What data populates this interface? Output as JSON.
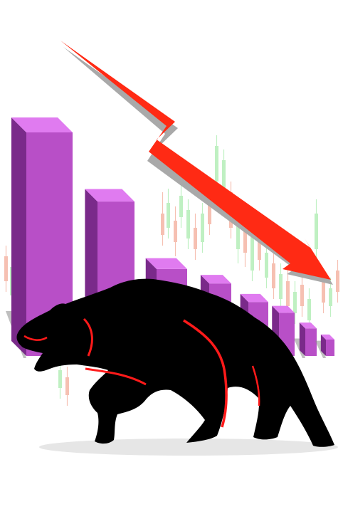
{
  "scene": {
    "background_color": "#ffffff",
    "bar_front_color": "#b84fc7",
    "bar_side_color": "#7a2a8a",
    "bar_top_color": "#e07bf0",
    "arrow_color": "#ff2a14",
    "arrow_shadow_color": "#a9a9a9",
    "bear_color": "#000000",
    "bear_accent_color": "#ff1a1a",
    "ground_shadow_color": "#e6e6e6",
    "candle_up_color": "#bff0c2",
    "candle_down_color": "#f6c0b2"
  },
  "chart_data": {
    "type": "bar",
    "trend": "declining",
    "categories": [
      "",
      "",
      "",
      "",
      "",
      "",
      "",
      ""
    ],
    "values": [
      100,
      70,
      41,
      34,
      26,
      21,
      14,
      9
    ],
    "xlabel": "",
    "ylabel": "",
    "grid": false,
    "legend": "none"
  },
  "icons": {
    "bear": "bear-icon",
    "arrow": "down-arrow-icon"
  }
}
